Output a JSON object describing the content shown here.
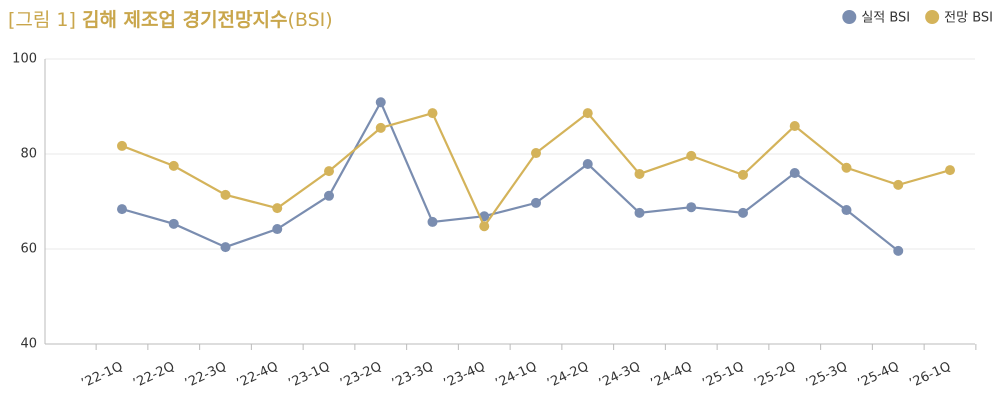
{
  "chart_data": {
    "type": "line",
    "title_label": "[그림 1]",
    "title": "김해 제조업 경기전망지수",
    "title_unit": "(BSI)",
    "categories": [
      "’22-1Q",
      "’22-2Q",
      "’22-3Q",
      "’22-4Q",
      "’23-1Q",
      "’23-2Q",
      "’23-3Q",
      "’23-4Q",
      "’24-1Q",
      "’24-2Q",
      "’24-3Q",
      "’24-4Q",
      "’25-1Q",
      "’25-2Q",
      "’25-3Q",
      "’25-4Q",
      "’26-1Q"
    ],
    "series": [
      {
        "name": "실적 BSI",
        "color": "#7a8db0",
        "values": [
          68.4,
          65.3,
          60.4,
          64.2,
          71.2,
          90.9,
          65.7,
          66.9,
          69.7,
          77.9,
          67.6,
          68.8,
          67.6,
          76.0,
          68.2,
          59.6,
          null
        ]
      },
      {
        "name": "전망 BSI",
        "color": "#d4b35a",
        "values": [
          81.7,
          77.5,
          71.4,
          68.6,
          76.4,
          85.5,
          88.6,
          64.8,
          80.2,
          88.6,
          75.8,
          79.6,
          75.6,
          85.9,
          77.1,
          73.5,
          76.6
        ]
      }
    ],
    "ylim": [
      40,
      100
    ],
    "yticks": [
      40,
      60,
      80,
      100
    ],
    "grid": true,
    "legend": "top-right"
  }
}
